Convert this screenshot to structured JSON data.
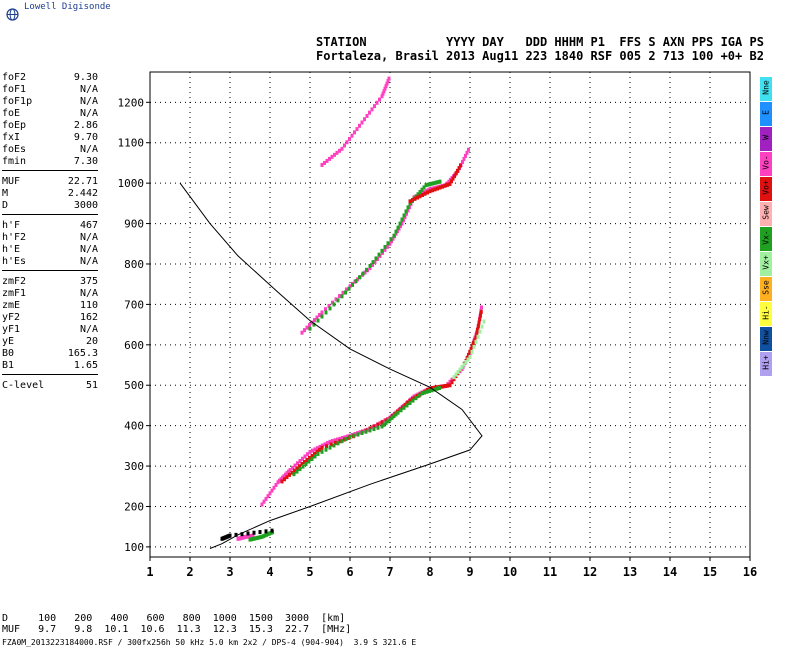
{
  "brand": {
    "name": "Lowell Digisonde"
  },
  "header": {
    "labels": "STATION           YYYY DAY   DDD HHHM P1  FFS S AXN PPS IGA PS",
    "values": "Fortaleza, Brasil 2013 Aug11 223 1840 RSF 005 2 713 100 +0+ B2"
  },
  "params": [
    [
      {
        "k": "foF2",
        "v": "9.30"
      },
      {
        "k": "foF1",
        "v": "N/A"
      },
      {
        "k": "foF1p",
        "v": "N/A"
      },
      {
        "k": "foE",
        "v": "N/A"
      },
      {
        "k": "foEp",
        "v": "2.86"
      },
      {
        "k": "fxI",
        "v": "9.70"
      },
      {
        "k": "foEs",
        "v": "N/A"
      },
      {
        "k": "fmin",
        "v": "7.30"
      }
    ],
    [
      {
        "k": "MUF",
        "v": "22.71"
      },
      {
        "k": "M",
        "v": "2.442"
      },
      {
        "k": "D",
        "v": "3000"
      }
    ],
    [
      {
        "k": "h'F",
        "v": "467"
      },
      {
        "k": "h'F2",
        "v": "N/A"
      },
      {
        "k": "h'E",
        "v": "N/A"
      },
      {
        "k": "h'Es",
        "v": "N/A"
      }
    ],
    [
      {
        "k": "zmF2",
        "v": "375"
      },
      {
        "k": "zmF1",
        "v": "N/A"
      },
      {
        "k": "zmE",
        "v": "110"
      },
      {
        "k": "yF2",
        "v": "162"
      },
      {
        "k": "yF1",
        "v": "N/A"
      },
      {
        "k": "yE",
        "v": "20"
      },
      {
        "k": "B0",
        "v": "165.3"
      },
      {
        "k": "B1",
        "v": "1.65"
      }
    ],
    [
      {
        "k": "C-level",
        "v": "51"
      }
    ]
  ],
  "distance_table": {
    "line1": "D     100   200   400   600   800  1000  1500  3000  [km]",
    "line2": "MUF   9.7   9.8  10.1  10.6  11.3  12.3  15.3  22.7  [MHz]"
  },
  "footer": "FZA0M_2013223184000.RSF / 300fx256h 50 kHz 5.0 km 2x2 / DPS-4 (904-904)  3.9 S 321.6 E",
  "legend": [
    {
      "label": "Nne",
      "color": "#40e0f0"
    },
    {
      "label": "E",
      "color": "#1e90ff"
    },
    {
      "label": "W",
      "color": "#a020c0"
    },
    {
      "label": "Vo-",
      "color": "#ff40c0"
    },
    {
      "label": "Vo+",
      "color": "#e01010"
    },
    {
      "label": "Sew",
      "color": "#ffb0b0"
    },
    {
      "label": "Vx-",
      "color": "#20a020"
    },
    {
      "label": "Vx+",
      "color": "#a0f0a0"
    },
    {
      "label": "Sse",
      "color": "#ffb020"
    },
    {
      "label": "Hi-",
      "color": "#ffff40"
    },
    {
      "label": "Nnw",
      "color": "#1050a0"
    },
    {
      "label": "Hi+",
      "color": "#b0a0f0"
    }
  ],
  "chart_data": {
    "type": "scatter",
    "xlim": [
      1,
      16
    ],
    "ylim": [
      75,
      1275
    ],
    "xticks": [
      1,
      2,
      3,
      4,
      5,
      6,
      7,
      8,
      9,
      10,
      11,
      12,
      13,
      14,
      15,
      16
    ],
    "yticks": [
      100,
      200,
      300,
      400,
      500,
      600,
      700,
      800,
      900,
      1000,
      1100,
      1200
    ],
    "grid": true,
    "traces": [
      {
        "color": "#ff40c0",
        "points": [
          [
            3.8,
            205
          ],
          [
            4.2,
            260
          ],
          [
            4.5,
            290
          ],
          [
            5.0,
            335
          ],
          [
            5.5,
            360
          ],
          [
            6.0,
            375
          ],
          [
            6.5,
            392
          ],
          [
            7.0,
            420
          ],
          [
            7.3,
            445
          ],
          [
            7.6,
            472
          ],
          [
            8.0,
            492
          ],
          [
            8.4,
            498
          ],
          [
            8.8,
            540
          ],
          [
            9.0,
            580
          ],
          [
            9.2,
            640
          ],
          [
            9.3,
            700
          ]
        ]
      },
      {
        "color": "#e01010",
        "points": [
          [
            4.3,
            262
          ],
          [
            4.8,
            305
          ],
          [
            5.3,
            345
          ],
          [
            6.2,
            378
          ],
          [
            7.0,
            418
          ],
          [
            7.5,
            462
          ],
          [
            8.0,
            492
          ],
          [
            8.5,
            500
          ],
          [
            8.9,
            560
          ],
          [
            9.15,
            620
          ],
          [
            9.3,
            690
          ]
        ]
      },
      {
        "color": "#20a020",
        "points": [
          [
            4.6,
            280
          ],
          [
            5.2,
            330
          ],
          [
            6.0,
            372
          ],
          [
            6.8,
            398
          ],
          [
            7.2,
            432
          ],
          [
            7.8,
            480
          ],
          [
            8.3,
            495
          ]
        ]
      },
      {
        "color": "#a0f0a0",
        "points": [
          [
            8.6,
            520
          ],
          [
            9.0,
            570
          ],
          [
            9.4,
            670
          ]
        ]
      },
      {
        "color": "#ff40c0",
        "points": [
          [
            4.8,
            630
          ],
          [
            5.3,
            680
          ],
          [
            6.0,
            745
          ],
          [
            6.5,
            790
          ],
          [
            7.0,
            850
          ],
          [
            7.3,
            900
          ],
          [
            7.6,
            965
          ],
          [
            8.0,
            985
          ],
          [
            8.4,
            995
          ],
          [
            8.7,
            1030
          ],
          [
            9.0,
            1090
          ]
        ]
      },
      {
        "color": "#20a020",
        "points": [
          [
            5.0,
            640
          ],
          [
            5.8,
            720
          ],
          [
            6.5,
            795
          ],
          [
            7.1,
            870
          ],
          [
            7.5,
            950
          ],
          [
            7.9,
            995
          ],
          [
            8.3,
            1005
          ]
        ]
      },
      {
        "color": "#e01010",
        "points": [
          [
            7.5,
            955
          ],
          [
            8.0,
            980
          ],
          [
            8.5,
            998
          ],
          [
            8.8,
            1050
          ]
        ]
      },
      {
        "color": "#ff40c0",
        "points": [
          [
            5.3,
            1045
          ],
          [
            5.8,
            1085
          ],
          [
            6.3,
            1150
          ],
          [
            6.8,
            1215
          ],
          [
            7.0,
            1265
          ]
        ]
      },
      {
        "color": "#ff40c0",
        "points": [
          [
            3.2,
            120
          ],
          [
            3.4,
            125
          ],
          [
            3.6,
            128
          ]
        ]
      },
      {
        "color": "#20a020",
        "points": [
          [
            3.5,
            118
          ],
          [
            3.8,
            125
          ],
          [
            4.1,
            138
          ]
        ]
      },
      {
        "color": "#000000",
        "points": [
          [
            2.8,
            120
          ],
          [
            3.0,
            128
          ],
          [
            4.2,
            142
          ]
        ]
      }
    ],
    "profile": [
      [
        1.75,
        1000
      ],
      [
        2.5,
        900
      ],
      [
        3.2,
        820
      ],
      [
        4.2,
        730
      ],
      [
        5.0,
        660
      ],
      [
        6.0,
        590
      ],
      [
        7.0,
        540
      ],
      [
        8.0,
        495
      ],
      [
        8.8,
        440
      ],
      [
        9.3,
        375
      ],
      [
        9.0,
        340
      ],
      [
        8.0,
        305
      ],
      [
        6.5,
        255
      ],
      [
        5.0,
        200
      ],
      [
        4.0,
        165
      ],
      [
        3.2,
        130
      ],
      [
        2.8,
        108
      ],
      [
        2.5,
        96
      ]
    ]
  }
}
